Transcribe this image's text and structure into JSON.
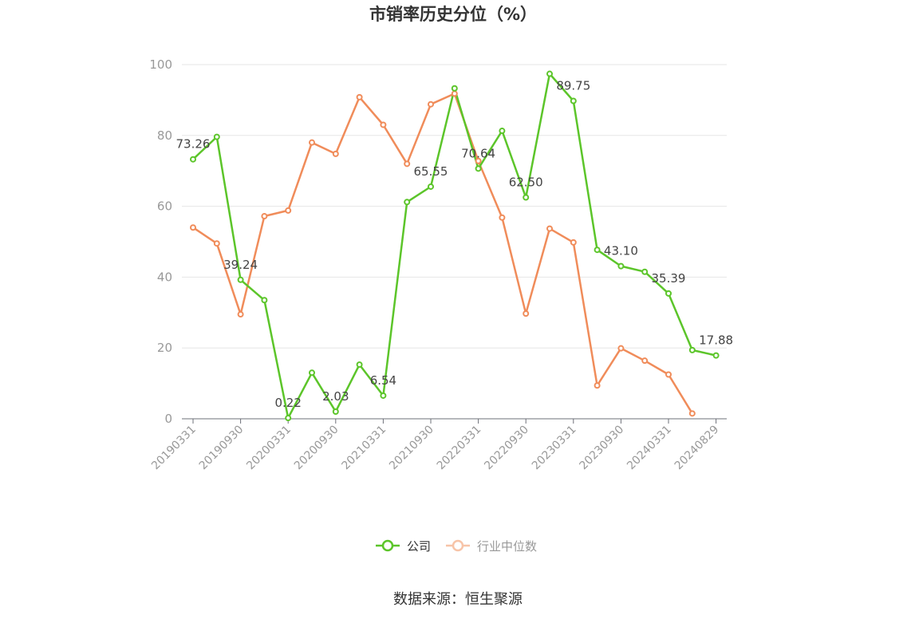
{
  "chart_data": {
    "type": "line",
    "title": "市销率历史分位（%）",
    "source": "数据来源：恒生聚源",
    "ylim": [
      0,
      100
    ],
    "yticks": [
      0,
      20,
      40,
      60,
      80,
      100
    ],
    "grid": true,
    "legend_position": "bottom",
    "x": [
      "20190331",
      "20190630",
      "20190930",
      "20191231",
      "20200331",
      "20200630",
      "20200930",
      "20201231",
      "20210331",
      "20210630",
      "20210930",
      "20211231",
      "20220331",
      "20220630",
      "20220930",
      "20221231",
      "20230331",
      "20230630",
      "20230930",
      "20231231",
      "20240331",
      "20240630",
      "20240829"
    ],
    "xtick_labels": [
      "20190331",
      "20190930",
      "20200331",
      "20200930",
      "20210331",
      "20210930",
      "20220331",
      "20220930",
      "20230331",
      "20230930",
      "20240331",
      "20240829"
    ],
    "series": [
      {
        "name": "公司",
        "color": "#5cc52a",
        "values": [
          73.26,
          79.6,
          39.24,
          33.5,
          0.22,
          13.0,
          2.03,
          15.3,
          6.54,
          61.2,
          65.55,
          93.3,
          70.64,
          81.3,
          62.5,
          97.4,
          89.75,
          47.7,
          43.1,
          41.5,
          35.39,
          19.4,
          17.88
        ],
        "labels": [
          "73.26",
          "",
          "39.24",
          "",
          "0.22",
          "",
          "2.03",
          "",
          "6.54",
          "",
          "65.55",
          "",
          "70.64",
          "",
          "62.50",
          "",
          "89.75",
          "",
          "43.10",
          "",
          "35.39",
          "",
          "17.88"
        ]
      },
      {
        "name": "行业中位数",
        "color": "#f08c5a",
        "values": [
          54.0,
          49.5,
          29.5,
          57.2,
          58.8,
          78.0,
          74.8,
          90.8,
          83.0,
          72.0,
          88.8,
          91.8,
          72.8,
          56.8,
          29.7,
          53.7,
          49.8,
          9.4,
          19.9,
          16.4,
          12.5,
          1.5,
          null
        ]
      }
    ]
  }
}
